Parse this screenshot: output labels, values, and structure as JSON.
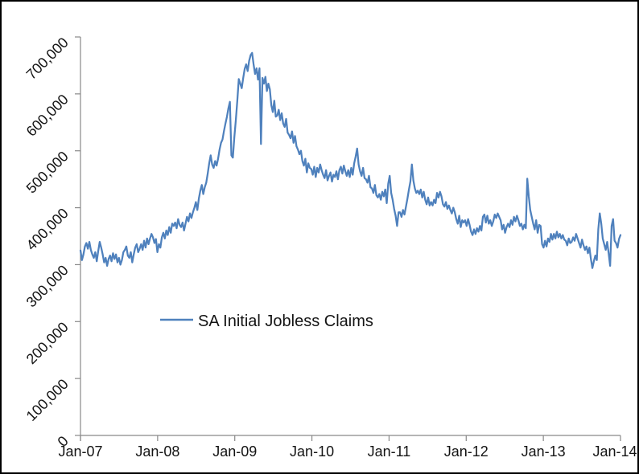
{
  "chart_data": {
    "type": "line",
    "title": "",
    "legend": {
      "position": "inside-center-left"
    },
    "colors": {
      "line": "#4f81bd",
      "axis": "#898989",
      "text": "#141414",
      "background": "#ffffff",
      "frame_border": "#000000"
    },
    "axes": {
      "x": {
        "tick_labels": [
          "Jan-07",
          "Jan-08",
          "Jan-09",
          "Jan-10",
          "Jan-11",
          "Jan-12",
          "Jan-13",
          "Jan-14"
        ],
        "frequency_hint": "weekly points between yearly ticks"
      },
      "y": {
        "min": 0,
        "max": 700000,
        "tick_interval": 100000,
        "tick_values": [
          0,
          100000,
          200000,
          300000,
          400000,
          500000,
          600000,
          700000
        ],
        "tick_labels": [
          "0",
          "100,000",
          "200,000",
          "300,000",
          "400,000",
          "500,000",
          "600,000",
          "700,000"
        ],
        "label_rotation_deg": -45
      },
      "grid": "off"
    },
    "series": [
      {
        "name": "SA Initial Jobless Claims",
        "color": "#4f81bd",
        "values": [
          325000,
          308000,
          318000,
          332000,
          338000,
          328000,
          340000,
          326000,
          318000,
          312000,
          322000,
          306000,
          324000,
          340000,
          330000,
          318000,
          304000,
          312000,
          298000,
          310000,
          316000,
          306000,
          320000,
          310000,
          318000,
          304000,
          312000,
          300000,
          308000,
          322000,
          326000,
          332000,
          316000,
          312000,
          322000,
          304000,
          318000,
          330000,
          336000,
          322000,
          328000,
          336000,
          326000,
          342000,
          330000,
          346000,
          336000,
          346000,
          354000,
          348000,
          338000,
          345000,
          322000,
          336000,
          330000,
          348000,
          356000,
          346000,
          360000,
          352000,
          366000,
          356000,
          372000,
          368000,
          374000,
          364000,
          380000,
          370000,
          366000,
          374000,
          360000,
          372000,
          384000,
          376000,
          390000,
          382000,
          392000,
          400000,
          410000,
          396000,
          416000,
          430000,
          440000,
          424000,
          436000,
          444000,
          460000,
          478000,
          492000,
          476000,
          470000,
          482000,
          474000,
          486000,
          502000,
          514000,
          520000,
          535000,
          548000,
          560000,
          575000,
          586000,
          492000,
          488000,
          524000,
          554000,
          588000,
          626000,
          618000,
          610000,
          628000,
          644000,
          652000,
          640000,
          658000,
          668000,
          672000,
          652000,
          635000,
          645000,
          625000,
          645000,
          512000,
          628000,
          618000,
          630000,
          605000,
          618000,
          608000,
          580000,
          568000,
          588000,
          560000,
          562000,
          572000,
          554000,
          566000,
          548000,
          542000,
          556000,
          532000,
          528000,
          522000,
          534000,
          514000,
          526000,
          508000,
          502000,
          494000,
          500000,
          482000,
          474000,
          486000,
          462000,
          478000,
          470000,
          468000,
          458000,
          472000,
          454000,
          470000,
          462000,
          476000,
          466000,
          458000,
          452000,
          466000,
          448000,
          456000,
          462000,
          446000,
          458000,
          454000,
          464000,
          450000,
          466000,
          472000,
          460000,
          474000,
          464000,
          456000,
          466000,
          454000,
          470000,
          458000,
          478000,
          490000,
          504000,
          476000,
          464000,
          456000,
          470000,
          452000,
          450000,
          444000,
          456000,
          436000,
          434000,
          426000,
          440000,
          422000,
          418000,
          424000,
          414000,
          428000,
          420000,
          432000,
          408000,
          442000,
          456000,
          426000,
          414000,
          398000,
          386000,
          368000,
          392000,
          392000,
          384000,
          396000,
          388000,
          402000,
          416000,
          432000,
          446000,
          476000,
          448000,
          434000,
          426000,
          430000,
          424000,
          432000,
          418000,
          428000,
          414000,
          406000,
          418000,
          404000,
          410000,
          404000,
          414000,
          408000,
          426000,
          418000,
          428000,
          420000,
          406000,
          402000,
          410000,
          398000,
          404000,
          396000,
          390000,
          400000,
          392000,
          380000,
          372000,
          386000,
          366000,
          378000,
          374000,
          378000,
          368000,
          380000,
          370000,
          358000,
          352000,
          362000,
          354000,
          364000,
          358000,
          368000,
          360000,
          384000,
          388000,
          374000,
          386000,
          372000,
          378000,
          368000,
          376000,
          388000,
          382000,
          390000,
          384000,
          378000,
          362000,
          370000,
          356000,
          366000,
          372000,
          366000,
          378000,
          370000,
          384000,
          376000,
          386000,
          378000,
          368000,
          372000,
          362000,
          370000,
          364000,
          451000,
          420000,
          396000,
          384000,
          372000,
          362000,
          378000,
          356000,
          370000,
          368000,
          336000,
          330000,
          342000,
          332000,
          346000,
          340000,
          354000,
          344000,
          354000,
          346000,
          358000,
          348000,
          354000,
          346000,
          352000,
          344000,
          342000,
          334000,
          346000,
          338000,
          340000,
          348000,
          342000,
          354000,
          346000,
          338000,
          330000,
          344000,
          334000,
          326000,
          332000,
          320000,
          330000,
          310000,
          294000,
          306000,
          316000,
          308000,
          362000,
          390000,
          372000,
          346000,
          336000,
          326000,
          340000,
          320000,
          298000,
          368000,
          380000,
          342000,
          338000,
          330000,
          345000,
          352000
        ]
      }
    ]
  }
}
